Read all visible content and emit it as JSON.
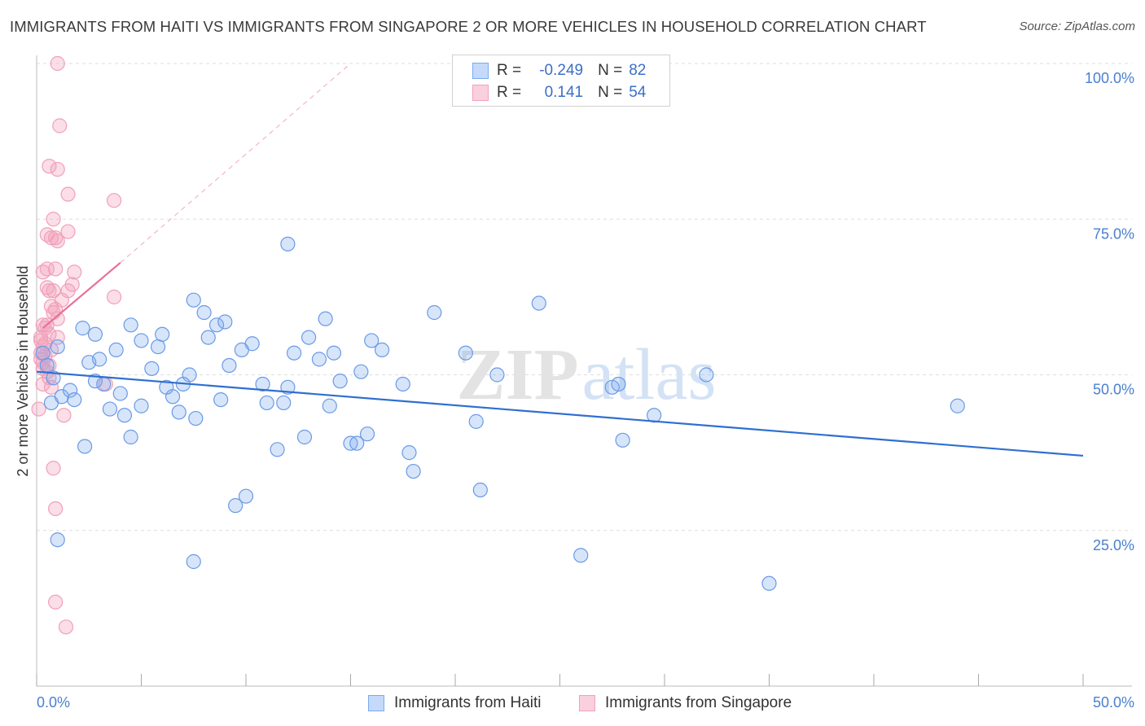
{
  "title": "IMMIGRANTS FROM HAITI VS IMMIGRANTS FROM SINGAPORE 2 OR MORE VEHICLES IN HOUSEHOLD CORRELATION CHART",
  "source": "Source: ZipAtlas.com",
  "watermark": "ZIPatlas",
  "legend": {
    "r_label": "R =",
    "n_label": "N =",
    "rows": [
      {
        "r": "-0.249",
        "n": "82",
        "color": "#7aaaf0"
      },
      {
        "r": "0.141",
        "n": "54",
        "color": "#f4a0bb"
      }
    ]
  },
  "chart_data": {
    "type": "scatter",
    "title": "IMMIGRANTS FROM HAITI VS IMMIGRANTS FROM SINGAPORE 2 OR MORE VEHICLES IN HOUSEHOLD CORRELATION CHART",
    "xlabel": "",
    "ylabel": "2 or more Vehicles in Household",
    "xlim": [
      0,
      50
    ],
    "ylim": [
      0,
      100
    ],
    "x_tick_labels": [
      "0.0%",
      "50.0%"
    ],
    "y_tick_labels": [
      "100.0%",
      "75.0%",
      "50.0%",
      "25.0%"
    ],
    "y_ticks": [
      100,
      75,
      50,
      25
    ],
    "grid": true,
    "series": [
      {
        "name": "Immigrants from Haiti",
        "color": "#7aaaf0",
        "line_color": "#2f6fd0",
        "trend": {
          "x": [
            0,
            50
          ],
          "y": [
            50.5,
            37.0
          ]
        },
        "points": [
          [
            0.3,
            53.5
          ],
          [
            0.5,
            51.5
          ],
          [
            0.8,
            49.5
          ],
          [
            1.0,
            54.5
          ],
          [
            1.2,
            46.5
          ],
          [
            1.6,
            47.5
          ],
          [
            2.8,
            49.0
          ],
          [
            1.8,
            46.0
          ],
          [
            2.2,
            57.5
          ],
          [
            2.5,
            52.0
          ],
          [
            2.3,
            38.5
          ],
          [
            0.7,
            45.5
          ],
          [
            3.0,
            52.5
          ],
          [
            3.2,
            48.5
          ],
          [
            3.8,
            54.0
          ],
          [
            4.0,
            47.0
          ],
          [
            4.2,
            43.5
          ],
          [
            4.5,
            58.0
          ],
          [
            4.5,
            40.0
          ],
          [
            5.0,
            55.5
          ],
          [
            5.5,
            51.0
          ],
          [
            5.8,
            54.5
          ],
          [
            6.0,
            56.5
          ],
          [
            6.5,
            46.5
          ],
          [
            7.0,
            48.5
          ],
          [
            7.3,
            50.0
          ],
          [
            7.6,
            43.0
          ],
          [
            8.2,
            56.0
          ],
          [
            8.6,
            58.0
          ],
          [
            8.8,
            46.0
          ],
          [
            9.0,
            58.5
          ],
          [
            9.8,
            54.0
          ],
          [
            10.3,
            55.0
          ],
          [
            10.8,
            48.5
          ],
          [
            11.0,
            45.5
          ],
          [
            11.5,
            38.0
          ],
          [
            11.8,
            45.5
          ],
          [
            12.0,
            48.0
          ],
          [
            12.3,
            53.5
          ],
          [
            12.8,
            40.0
          ],
          [
            13.0,
            56.0
          ],
          [
            13.5,
            52.5
          ],
          [
            14.0,
            45.0
          ],
          [
            14.2,
            53.5
          ],
          [
            14.5,
            49.0
          ],
          [
            15.0,
            39.0
          ],
          [
            15.3,
            39.0
          ],
          [
            15.8,
            40.5
          ],
          [
            16.0,
            55.5
          ],
          [
            16.5,
            54.0
          ],
          [
            17.5,
            48.5
          ],
          [
            17.8,
            37.5
          ],
          [
            18.0,
            34.5
          ],
          [
            19.0,
            60.0
          ],
          [
            20.5,
            53.5
          ],
          [
            21.0,
            42.5
          ],
          [
            21.2,
            31.5
          ],
          [
            22.0,
            50.0
          ],
          [
            24.0,
            61.5
          ],
          [
            12.0,
            71.0
          ],
          [
            10.0,
            30.5
          ],
          [
            9.5,
            29.0
          ],
          [
            7.5,
            20.0
          ],
          [
            1.0,
            23.5
          ],
          [
            6.8,
            44.0
          ],
          [
            7.5,
            62.0
          ],
          [
            8.0,
            60.0
          ],
          [
            15.5,
            50.5
          ],
          [
            26.0,
            21.0
          ],
          [
            27.5,
            48.0
          ],
          [
            28.0,
            39.5
          ],
          [
            29.5,
            43.5
          ],
          [
            32.0,
            50.0
          ],
          [
            35.0,
            16.5
          ],
          [
            44.0,
            45.0
          ],
          [
            27.8,
            48.5
          ],
          [
            3.5,
            44.5
          ],
          [
            2.8,
            56.5
          ],
          [
            5.0,
            45.0
          ],
          [
            6.2,
            48.0
          ],
          [
            9.2,
            51.5
          ],
          [
            13.8,
            59.0
          ]
        ]
      },
      {
        "name": "Immigrants from Singapore",
        "color": "#f4a0bb",
        "line_color": "#e8709a",
        "trend": {
          "x": [
            0.3,
            4.0
          ],
          "y": [
            57.5,
            68.0
          ]
        },
        "trend_dashed": {
          "x": [
            4.0,
            15.0
          ],
          "y": [
            68.0,
            100.0
          ]
        },
        "points": [
          [
            1.0,
            100.0
          ],
          [
            1.1,
            90.0
          ],
          [
            0.6,
            83.5
          ],
          [
            1.0,
            83.0
          ],
          [
            1.5,
            79.0
          ],
          [
            3.7,
            78.0
          ],
          [
            0.8,
            75.0
          ],
          [
            0.5,
            72.5
          ],
          [
            0.7,
            72.0
          ],
          [
            1.5,
            73.0
          ],
          [
            1.0,
            71.5
          ],
          [
            0.9,
            72.0
          ],
          [
            0.5,
            67.0
          ],
          [
            0.3,
            66.5
          ],
          [
            0.9,
            67.0
          ],
          [
            1.8,
            66.5
          ],
          [
            1.7,
            64.5
          ],
          [
            0.5,
            64.0
          ],
          [
            0.6,
            63.5
          ],
          [
            0.8,
            63.5
          ],
          [
            1.5,
            63.5
          ],
          [
            3.7,
            62.5
          ],
          [
            0.7,
            61.0
          ],
          [
            0.9,
            60.5
          ],
          [
            1.0,
            59.0
          ],
          [
            0.3,
            58.0
          ],
          [
            0.4,
            57.5
          ],
          [
            0.6,
            56.5
          ],
          [
            1.0,
            56.0
          ],
          [
            0.2,
            55.5
          ],
          [
            0.4,
            55.0
          ],
          [
            0.3,
            54.5
          ],
          [
            0.2,
            53.5
          ],
          [
            0.2,
            52.5
          ],
          [
            0.3,
            52.0
          ],
          [
            0.6,
            51.5
          ],
          [
            0.6,
            49.5
          ],
          [
            0.3,
            48.5
          ],
          [
            0.7,
            48.0
          ],
          [
            3.3,
            48.5
          ],
          [
            0.1,
            44.5
          ],
          [
            1.3,
            43.5
          ],
          [
            0.8,
            35.0
          ],
          [
            0.9,
            28.5
          ],
          [
            0.9,
            13.5
          ],
          [
            1.4,
            9.5
          ],
          [
            0.4,
            53.0
          ],
          [
            0.5,
            50.5
          ],
          [
            0.5,
            58.0
          ],
          [
            0.8,
            60.0
          ],
          [
            0.3,
            51.0
          ],
          [
            0.2,
            56.0
          ],
          [
            0.7,
            54.0
          ],
          [
            1.2,
            62.0
          ]
        ]
      }
    ]
  },
  "bottom_legend": [
    {
      "label": "Immigrants from Haiti"
    },
    {
      "label": "Immigrants from Singapore"
    }
  ]
}
